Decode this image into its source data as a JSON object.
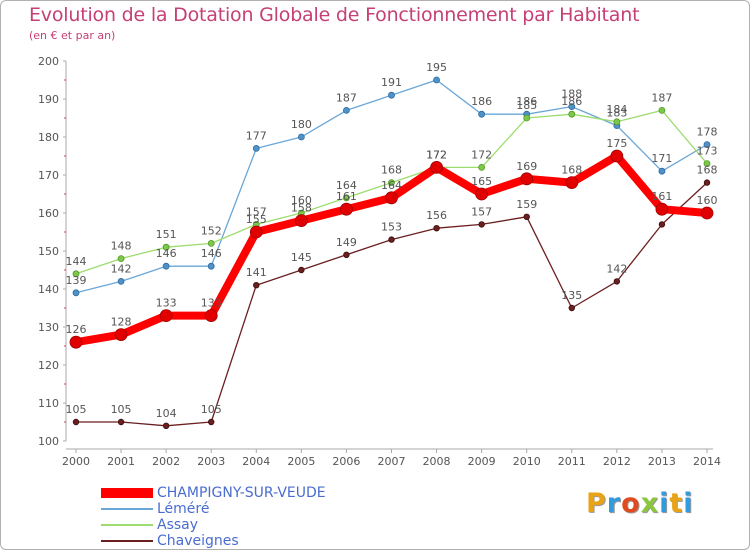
{
  "header": {
    "title": "Evolution de la Dotation Globale de Fonctionnement par Habitant",
    "subtitle": "(en € et par an)"
  },
  "logo": {
    "text": "Proxiti",
    "letter_colors": [
      "#e8a316",
      "#2f9be0",
      "#e04a1f",
      "#8cc63e",
      "#2f9be0",
      "#e8a316",
      "#2f9be0"
    ]
  },
  "chart_data": {
    "type": "line",
    "x": [
      "2000",
      "2001",
      "2002",
      "2003",
      "2004",
      "2005",
      "2006",
      "2007",
      "2008",
      "2009",
      "2010",
      "2011",
      "2012",
      "2013",
      "2014"
    ],
    "ylim": [
      100,
      200
    ],
    "yticks": [
      "100",
      "110",
      "120",
      "130",
      "140",
      "150",
      "160",
      "170",
      "180",
      "190",
      "200"
    ],
    "grid": false,
    "legend_position": "bottom-left",
    "series": [
      {
        "name": "Chaveignes",
        "color": "#6b1f1f",
        "values": [
          105,
          105,
          104,
          105,
          141,
          145,
          149,
          153,
          156,
          157,
          159,
          135,
          142,
          157,
          168
        ]
      },
      {
        "name": "Léméré",
        "color": "#4f92c8",
        "values": [
          139,
          142,
          146,
          146,
          177,
          180,
          187,
          191,
          195,
          186,
          186,
          188,
          183,
          171,
          178
        ]
      },
      {
        "name": "Assay",
        "color": "#8fd35a",
        "values": [
          144,
          148,
          151,
          152,
          157,
          160,
          164,
          168,
          172,
          172,
          185,
          186,
          184,
          187,
          173
        ]
      },
      {
        "name": "CHAMPIGNY-SUR-VEUDE",
        "color": "#ff0000",
        "values": [
          126,
          128,
          133,
          133,
          155,
          158,
          161,
          164,
          172,
          165,
          169,
          168,
          175,
          161,
          160
        ]
      }
    ],
    "value_labels": [
      {
        "text": "105",
        "series": "Chaveignes",
        "i": 0
      },
      {
        "text": "105",
        "series": "Chaveignes",
        "i": 1
      },
      {
        "text": "104",
        "series": "Chaveignes",
        "i": 2
      },
      {
        "text": "105",
        "series": "Chaveignes",
        "i": 3
      },
      {
        "text": "141",
        "series": "Chaveignes",
        "i": 4
      },
      {
        "text": "145",
        "series": "Chaveignes",
        "i": 5
      },
      {
        "text": "149",
        "series": "Chaveignes",
        "i": 6
      },
      {
        "text": "153",
        "series": "Chaveignes",
        "i": 7
      },
      {
        "text": "156",
        "series": "Chaveignes",
        "i": 8
      },
      {
        "text": "157",
        "series": "Chaveignes",
        "i": 9
      },
      {
        "text": "159",
        "series": "Chaveignes",
        "i": 10
      },
      {
        "text": "135",
        "series": "Chaveignes",
        "i": 11
      },
      {
        "text": "142",
        "series": "Chaveignes",
        "i": 12
      },
      {
        "text": "168",
        "series": "Chaveignes",
        "i": 14
      },
      {
        "text": "139",
        "series": "Léméré",
        "i": 0
      },
      {
        "text": "142",
        "series": "Léméré",
        "i": 1
      },
      {
        "text": "146",
        "series": "Léméré",
        "i": 2
      },
      {
        "text": "146",
        "series": "Léméré",
        "i": 3
      },
      {
        "text": "177",
        "series": "Léméré",
        "i": 4
      },
      {
        "text": "180",
        "series": "Léméré",
        "i": 5
      },
      {
        "text": "187",
        "series": "Léméré",
        "i": 6
      },
      {
        "text": "191",
        "series": "Léméré",
        "i": 7
      },
      {
        "text": "195",
        "series": "Léméré",
        "i": 8
      },
      {
        "text": "186",
        "series": "Léméré",
        "i": 9
      },
      {
        "text": "186",
        "series": "Léméré",
        "i": 10
      },
      {
        "text": "188",
        "series": "Léméré",
        "i": 11
      },
      {
        "text": "183",
        "series": "Léméré",
        "i": 12
      },
      {
        "text": "171",
        "series": "Léméré",
        "i": 13
      },
      {
        "text": "178",
        "series": "Léméré",
        "i": 14
      },
      {
        "text": "144",
        "series": "Assay",
        "i": 0
      },
      {
        "text": "148",
        "series": "Assay",
        "i": 1
      },
      {
        "text": "151",
        "series": "Assay",
        "i": 2
      },
      {
        "text": "152",
        "series": "Assay",
        "i": 3
      },
      {
        "text": "157",
        "series": "Assay",
        "i": 4
      },
      {
        "text": "160",
        "series": "Assay",
        "i": 5
      },
      {
        "text": "164",
        "series": "Assay",
        "i": 6
      },
      {
        "text": "168",
        "series": "Assay",
        "i": 7
      },
      {
        "text": "172",
        "series": "Assay",
        "i": 8
      },
      {
        "text": "172",
        "series": "Assay",
        "i": 9
      },
      {
        "text": "185",
        "series": "Assay",
        "i": 10
      },
      {
        "text": "186",
        "series": "Assay",
        "i": 11
      },
      {
        "text": "184",
        "series": "Assay",
        "i": 12
      },
      {
        "text": "187",
        "series": "Assay",
        "i": 13
      },
      {
        "text": "173",
        "series": "Assay",
        "i": 14
      },
      {
        "text": "126",
        "series": "CHAMPIGNY-SUR-VEUDE",
        "i": 0
      },
      {
        "text": "128",
        "series": "CHAMPIGNY-SUR-VEUDE",
        "i": 1
      },
      {
        "text": "133",
        "series": "CHAMPIGNY-SUR-VEUDE",
        "i": 2
      },
      {
        "text": "133",
        "series": "CHAMPIGNY-SUR-VEUDE",
        "i": 3
      },
      {
        "text": "155",
        "series": "CHAMPIGNY-SUR-VEUDE",
        "i": 4
      },
      {
        "text": "158",
        "series": "CHAMPIGNY-SUR-VEUDE",
        "i": 5
      },
      {
        "text": "161",
        "series": "CHAMPIGNY-SUR-VEUDE",
        "i": 6
      },
      {
        "text": "164",
        "series": "CHAMPIGNY-SUR-VEUDE",
        "i": 7
      },
      {
        "text": "172",
        "series": "CHAMPIGNY-SUR-VEUDE",
        "i": 8
      },
      {
        "text": "165",
        "series": "CHAMPIGNY-SUR-VEUDE",
        "i": 9
      },
      {
        "text": "169",
        "series": "CHAMPIGNY-SUR-VEUDE",
        "i": 10
      },
      {
        "text": "168",
        "series": "CHAMPIGNY-SUR-VEUDE",
        "i": 11
      },
      {
        "text": "175",
        "series": "CHAMPIGNY-SUR-VEUDE",
        "i": 12
      },
      {
        "text": "161",
        "series": "CHAMPIGNY-SUR-VEUDE",
        "i": 13
      },
      {
        "text": "160",
        "series": "CHAMPIGNY-SUR-VEUDE",
        "i": 14
      }
    ],
    "legend": [
      {
        "label": "CHAMPIGNY-SUR-VEUDE",
        "series": "CHAMPIGNY-SUR-VEUDE"
      },
      {
        "label": "Léméré",
        "series": "Léméré"
      },
      {
        "label": "Assay",
        "series": "Assay"
      },
      {
        "label": "Chaveignes",
        "series": "Chaveignes"
      }
    ]
  }
}
